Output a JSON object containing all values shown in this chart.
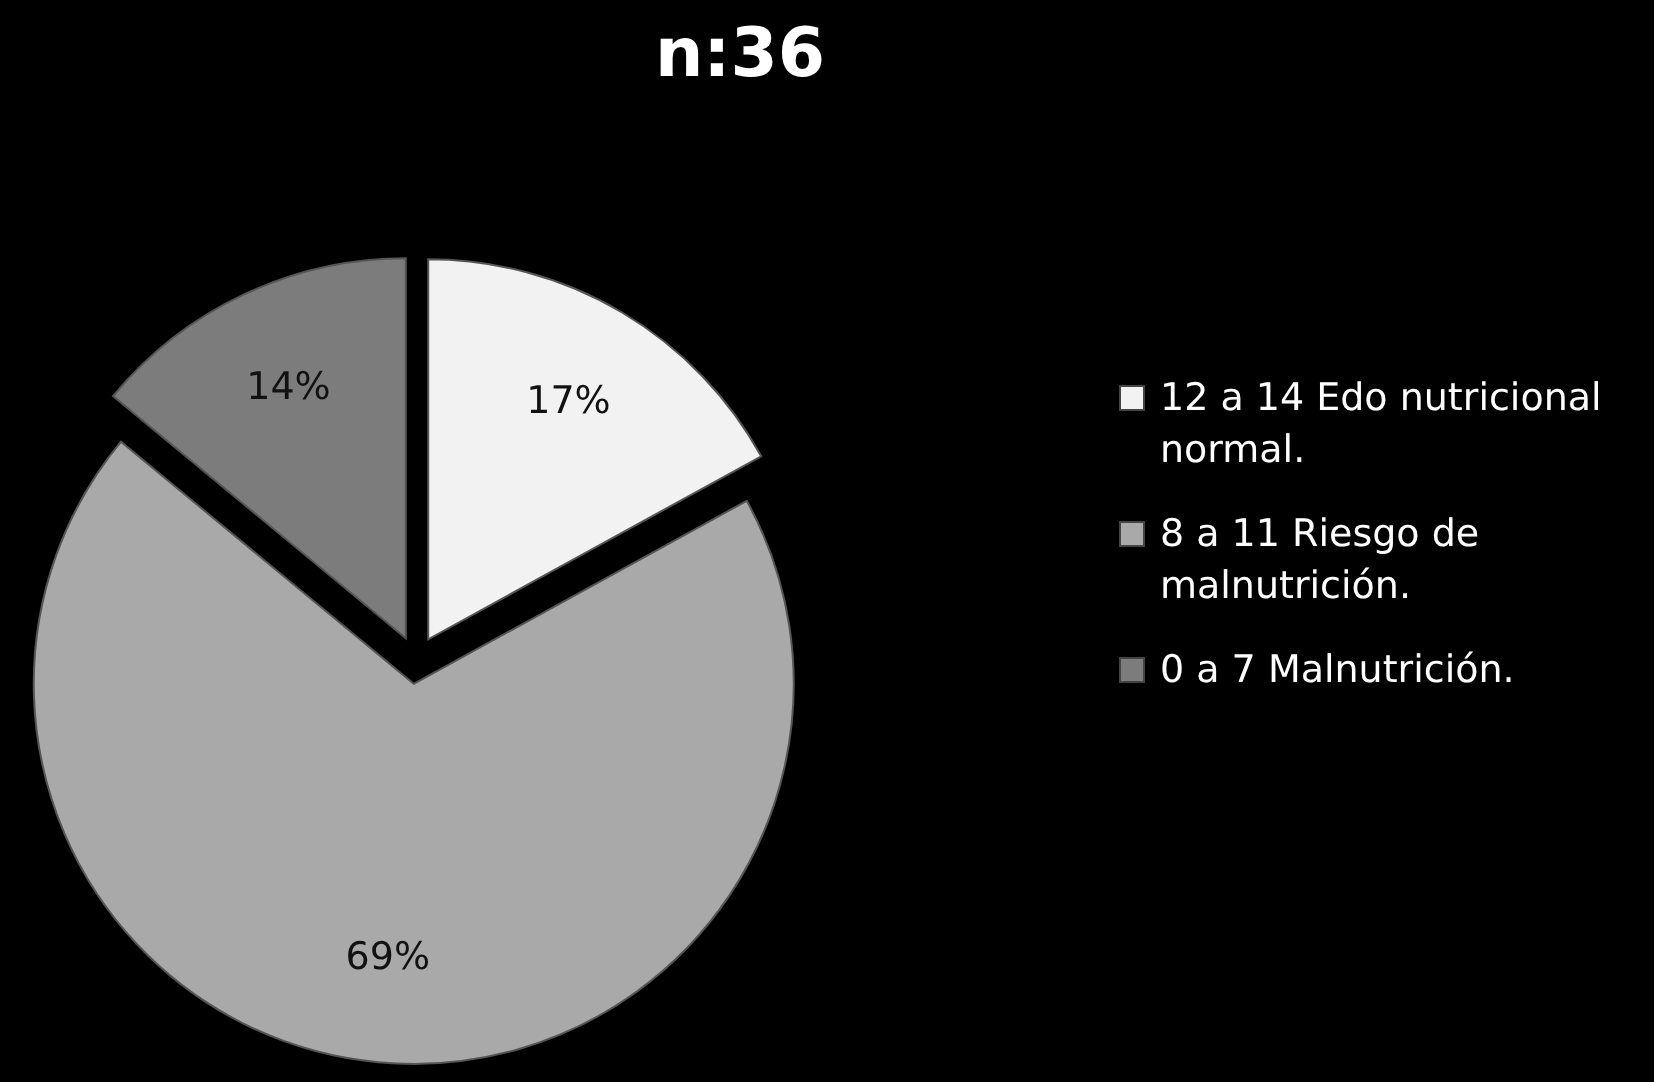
{
  "chart_data": {
    "type": "pie",
    "title": "n:36",
    "categories": [
      "12 a 14 Edo nutricional normal.",
      "8 a 11 Riesgo de malnutrición.",
      "0 a 7 Malnutrición."
    ],
    "values": [
      17,
      69,
      14
    ],
    "colors": [
      "#f2f2f2",
      "#a9a9a9",
      "#7c7c7c"
    ],
    "value_labels": [
      "17%",
      "69%",
      "14%"
    ],
    "legend": "right"
  }
}
